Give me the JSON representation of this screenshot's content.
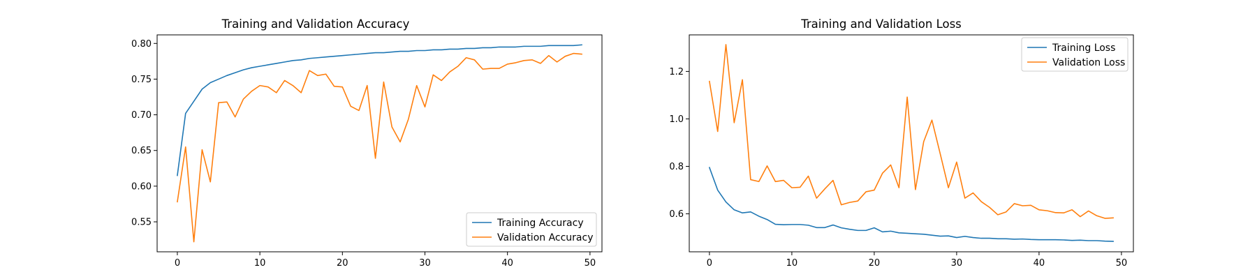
{
  "colors": {
    "training": "#1f77b4",
    "validation": "#ff7f0e"
  },
  "chart_data": [
    {
      "type": "line",
      "title": "Training and Validation Accuracy",
      "xlabel": "",
      "ylabel": "",
      "xlim": [
        -2.45,
        51.45
      ],
      "ylim": [
        0.508,
        0.812
      ],
      "xticks": [
        0,
        10,
        20,
        30,
        40,
        50
      ],
      "yticks": [
        0.55,
        0.6,
        0.65,
        0.7,
        0.75,
        0.8
      ],
      "ytick_labels": [
        "0.55",
        "0.60",
        "0.65",
        "0.70",
        "0.75",
        "0.80"
      ],
      "grid": false,
      "legend_position": "lower-right",
      "x": [
        0,
        1,
        2,
        3,
        4,
        5,
        6,
        7,
        8,
        9,
        10,
        11,
        12,
        13,
        14,
        15,
        16,
        17,
        18,
        19,
        20,
        21,
        22,
        23,
        24,
        25,
        26,
        27,
        28,
        29,
        30,
        31,
        32,
        33,
        34,
        35,
        36,
        37,
        38,
        39,
        40,
        41,
        42,
        43,
        44,
        45,
        46,
        47,
        48,
        49
      ],
      "series": [
        {
          "name": "Training Accuracy",
          "values": [
            0.615,
            0.702,
            0.719,
            0.736,
            0.745,
            0.75,
            0.755,
            0.759,
            0.763,
            0.766,
            0.768,
            0.77,
            0.772,
            0.774,
            0.776,
            0.777,
            0.779,
            0.78,
            0.781,
            0.782,
            0.783,
            0.784,
            0.785,
            0.786,
            0.787,
            0.787,
            0.788,
            0.789,
            0.789,
            0.79,
            0.79,
            0.791,
            0.791,
            0.792,
            0.792,
            0.793,
            0.793,
            0.794,
            0.794,
            0.795,
            0.795,
            0.795,
            0.796,
            0.796,
            0.796,
            0.797,
            0.797,
            0.797,
            0.797,
            0.798
          ]
        },
        {
          "name": "Validation Accuracy",
          "values": [
            0.578,
            0.655,
            0.522,
            0.651,
            0.606,
            0.717,
            0.718,
            0.697,
            0.722,
            0.733,
            0.741,
            0.739,
            0.731,
            0.748,
            0.741,
            0.731,
            0.762,
            0.755,
            0.757,
            0.74,
            0.739,
            0.712,
            0.706,
            0.741,
            0.639,
            0.746,
            0.683,
            0.662,
            0.694,
            0.741,
            0.711,
            0.756,
            0.748,
            0.76,
            0.768,
            0.78,
            0.777,
            0.764,
            0.765,
            0.765,
            0.771,
            0.773,
            0.776,
            0.777,
            0.772,
            0.783,
            0.774,
            0.782,
            0.786,
            0.785
          ]
        }
      ]
    },
    {
      "type": "line",
      "title": "Training and Validation Loss",
      "xlabel": "",
      "ylabel": "",
      "xlim": [
        -2.45,
        51.45
      ],
      "ylim": [
        0.44,
        1.354
      ],
      "xticks": [
        0,
        10,
        20,
        30,
        40,
        50
      ],
      "yticks": [
        0.6,
        0.8,
        1.0,
        1.2
      ],
      "ytick_labels": [
        "0.6",
        "0.8",
        "1.0",
        "1.2"
      ],
      "grid": false,
      "legend_position": "upper-right",
      "x": [
        0,
        1,
        2,
        3,
        4,
        5,
        6,
        7,
        8,
        9,
        10,
        11,
        12,
        13,
        14,
        15,
        16,
        17,
        18,
        19,
        20,
        21,
        22,
        23,
        24,
        25,
        26,
        27,
        28,
        29,
        30,
        31,
        32,
        33,
        34,
        35,
        36,
        37,
        38,
        39,
        40,
        41,
        42,
        43,
        44,
        45,
        46,
        47,
        48,
        49
      ],
      "series": [
        {
          "name": "Training Loss",
          "values": [
            0.795,
            0.7,
            0.65,
            0.617,
            0.604,
            0.608,
            0.59,
            0.576,
            0.556,
            0.554,
            0.555,
            0.555,
            0.552,
            0.542,
            0.542,
            0.553,
            0.541,
            0.535,
            0.53,
            0.53,
            0.541,
            0.524,
            0.527,
            0.52,
            0.518,
            0.516,
            0.514,
            0.51,
            0.506,
            0.507,
            0.5,
            0.505,
            0.5,
            0.497,
            0.497,
            0.495,
            0.495,
            0.493,
            0.494,
            0.492,
            0.491,
            0.491,
            0.491,
            0.49,
            0.488,
            0.489,
            0.487,
            0.487,
            0.485,
            0.484
          ]
        },
        {
          "name": "Validation Loss",
          "values": [
            1.158,
            0.947,
            1.313,
            0.984,
            1.165,
            0.744,
            0.736,
            0.802,
            0.736,
            0.741,
            0.71,
            0.712,
            0.759,
            0.666,
            0.705,
            0.741,
            0.638,
            0.648,
            0.654,
            0.693,
            0.7,
            0.771,
            0.806,
            0.71,
            1.092,
            0.702,
            0.904,
            0.995,
            0.854,
            0.71,
            0.818,
            0.666,
            0.688,
            0.651,
            0.627,
            0.596,
            0.608,
            0.643,
            0.634,
            0.636,
            0.617,
            0.613,
            0.605,
            0.604,
            0.617,
            0.588,
            0.612,
            0.592,
            0.581,
            0.583
          ]
        }
      ]
    }
  ]
}
